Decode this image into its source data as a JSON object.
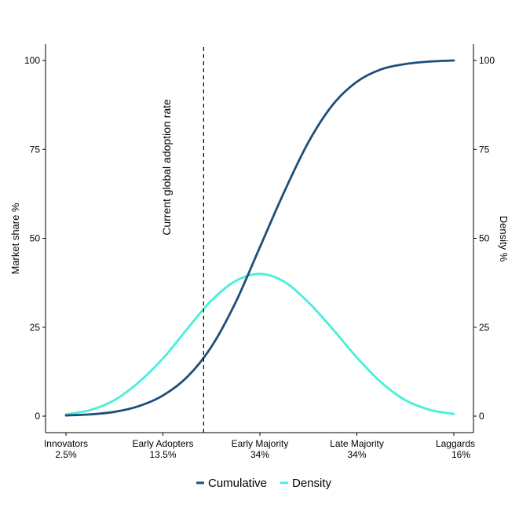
{
  "chart_data": {
    "type": "line",
    "title": "",
    "xlabel": "",
    "ylabel": "Market share %",
    "y2label": "Density %",
    "ylim": [
      0,
      100
    ],
    "yticks": [
      0,
      25,
      50,
      75,
      100
    ],
    "y2ticks": [
      0,
      25,
      50,
      75,
      100
    ],
    "xlim": [
      0,
      4
    ],
    "categories": [
      {
        "name": "Innovators",
        "share": "2.5%"
      },
      {
        "name": "Early Adopters",
        "share": "13.5%"
      },
      {
        "name": "Early Majority",
        "share": "34%"
      },
      {
        "name": "Late Majority",
        "share": "34%"
      },
      {
        "name": "Laggards",
        "share": "16%"
      }
    ],
    "reference_line": {
      "x": 1.42,
      "label": "Current global adoption rate",
      "style": "dashed"
    },
    "series": [
      {
        "name": "Cumulative",
        "color": "#1f4e79",
        "x": [
          0,
          0.25,
          0.5,
          0.75,
          1,
          1.25,
          1.5,
          1.75,
          2,
          2.25,
          2.5,
          2.75,
          3,
          3.25,
          3.5,
          3.75,
          4
        ],
        "values": [
          0.2,
          0.5,
          1.2,
          2.8,
          5.8,
          11,
          19.5,
          32,
          47.5,
          63,
          77,
          87.5,
          94,
          97.5,
          99,
          99.7,
          100
        ]
      },
      {
        "name": "Density",
        "color": "#48efd9",
        "x": [
          0,
          0.25,
          0.5,
          0.75,
          1,
          1.25,
          1.5,
          1.75,
          2,
          2.25,
          2.5,
          2.75,
          3,
          3.25,
          3.5,
          3.75,
          4
        ],
        "values": [
          0.5,
          1.7,
          4.5,
          9.5,
          16.2,
          24.5,
          32.5,
          38,
          40,
          37.8,
          32,
          24.5,
          16.5,
          9.5,
          4.5,
          1.8,
          0.6
        ]
      }
    ],
    "legend": {
      "position": "bottom",
      "entries": [
        "Cumulative",
        "Density"
      ]
    }
  }
}
